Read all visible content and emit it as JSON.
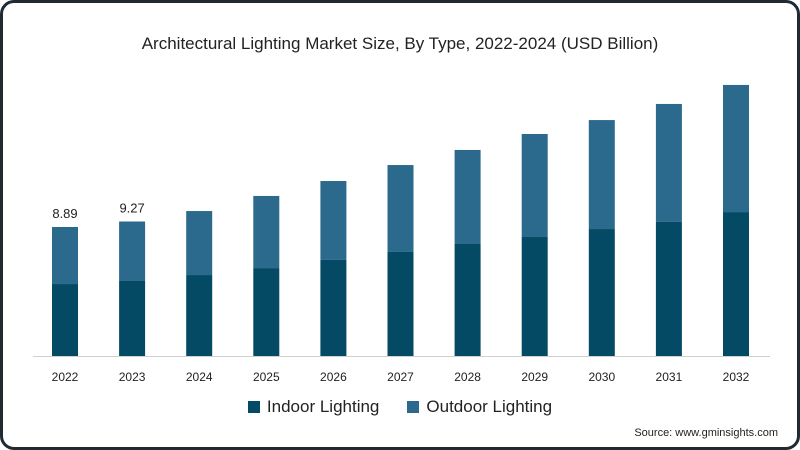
{
  "chart_data": {
    "type": "bar",
    "stacked": true,
    "title": "Architectural Lighting Market Size, By Type, 2022-2024 (USD Billion)",
    "categories": [
      "2022",
      "2023",
      "2024",
      "2025",
      "2026",
      "2027",
      "2028",
      "2029",
      "2030",
      "2031",
      "2032"
    ],
    "series": [
      {
        "name": "Indoor Lighting",
        "color": "#054a64",
        "values": [
          4.96,
          5.17,
          5.58,
          6.06,
          6.62,
          7.17,
          7.72,
          8.2,
          8.75,
          9.24,
          9.92
        ]
      },
      {
        "name": "Outdoor Lighting",
        "color": "#2b6a8c",
        "values": [
          3.93,
          4.1,
          4.41,
          4.97,
          5.44,
          5.99,
          6.48,
          7.1,
          7.51,
          8.13,
          8.76
        ]
      }
    ],
    "data_labels": [
      {
        "category": "2022",
        "text": "8.89"
      },
      {
        "category": "2023",
        "text": "9.27"
      }
    ],
    "xlabel": "",
    "ylabel": "",
    "ylim": [
      0,
      20
    ],
    "grid": false,
    "legend_position": "bottom-center"
  },
  "source": "Source: www.gminsights.com"
}
